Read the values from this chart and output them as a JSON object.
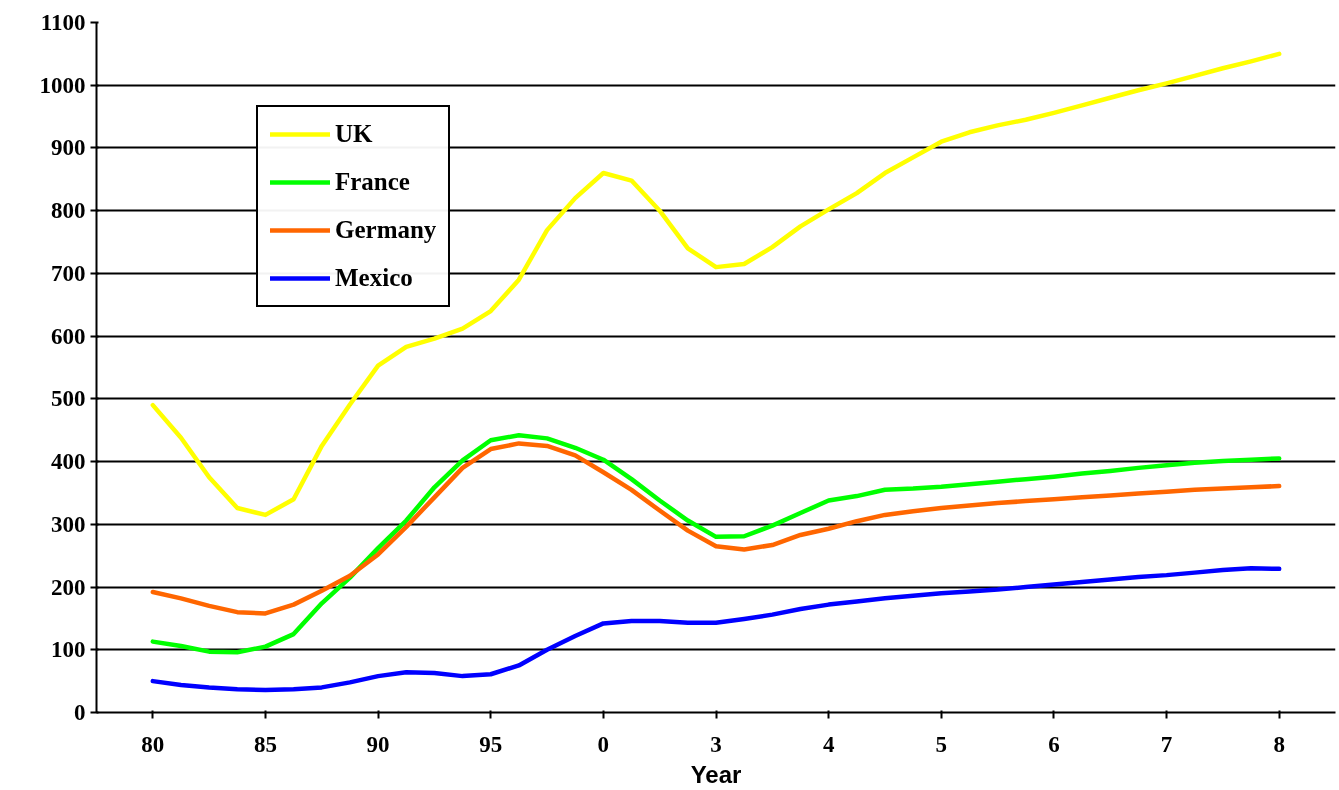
{
  "chart_data": {
    "type": "line",
    "xlabel": "Year",
    "categories": [
      "80",
      null,
      null,
      null,
      "85",
      null,
      null,
      null,
      "90",
      null,
      null,
      null,
      "95",
      null,
      null,
      null,
      "0",
      null,
      null,
      null,
      "3",
      null,
      null,
      null,
      "4",
      null,
      null,
      null,
      "5",
      null,
      null,
      null,
      "6",
      null,
      null,
      null,
      "7",
      null,
      null,
      null,
      "8"
    ],
    "ylim": [
      0,
      1100
    ],
    "yticks": [
      0,
      100,
      200,
      300,
      400,
      500,
      600,
      700,
      800,
      900,
      1000,
      1100
    ],
    "grid": "y",
    "legend": "top left",
    "marker": "none",
    "line_style": "solid",
    "series": [
      {
        "name": "UK",
        "color": "#ffff00",
        "values": [
          490,
          438,
          375,
          326,
          315,
          340,
          425,
          491,
          553,
          583,
          596,
          612,
          640,
          690,
          769,
          820,
          860,
          848,
          800,
          740,
          710,
          715,
          742,
          775,
          802,
          828,
          860,
          885,
          910,
          925,
          936,
          945,
          956,
          968,
          980,
          992,
          1003,
          1015,
          1027,
          1038,
          1050
        ]
      },
      {
        "name": "France",
        "color": "#00ff00",
        "values": [
          113,
          106,
          97,
          96,
          105,
          125,
          174,
          215,
          262,
          306,
          359,
          402,
          434,
          442,
          437,
          422,
          403,
          372,
          338,
          306,
          280,
          281,
          298,
          318,
          338,
          345,
          355,
          357,
          360,
          364,
          368,
          372,
          376,
          381,
          385,
          390,
          394,
          398,
          401,
          403,
          405
        ]
      },
      {
        "name": "Germany",
        "color": "#ff6600",
        "values": [
          192,
          182,
          170,
          160,
          158,
          172,
          194,
          218,
          252,
          296,
          343,
          390,
          420,
          429,
          425,
          410,
          383,
          355,
          322,
          290,
          265,
          260,
          267,
          283,
          293,
          305,
          315,
          321,
          326,
          330,
          334,
          337,
          340,
          343,
          346,
          349,
          352,
          355,
          357,
          359,
          361
        ]
      },
      {
        "name": "Mexico",
        "color": "#0000ff",
        "values": [
          50,
          44,
          40,
          37,
          36,
          37,
          40,
          48,
          58,
          64,
          63,
          58,
          61,
          75,
          100,
          122,
          142,
          146,
          146,
          143,
          143,
          149,
          156,
          165,
          172,
          177,
          182,
          186,
          190,
          193,
          196,
          200,
          204,
          208,
          212,
          216,
          219,
          223,
          227,
          230,
          229
        ]
      }
    ]
  }
}
